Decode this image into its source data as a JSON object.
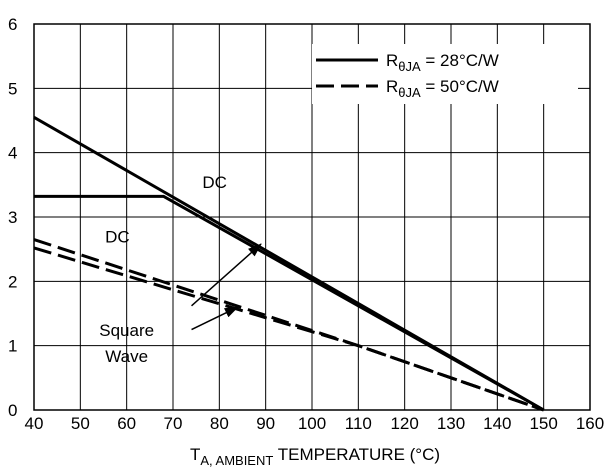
{
  "chart_data": {
    "type": "line",
    "xlabel_parts": {
      "main": "T",
      "sub": "A, AMBIENT",
      "rest": " TEMPERATURE (°C)"
    },
    "ylabel": "",
    "xlim": [
      40,
      160
    ],
    "ylim": [
      0,
      6
    ],
    "xticks": [
      40,
      50,
      60,
      70,
      80,
      90,
      100,
      110,
      120,
      130,
      140,
      150,
      160
    ],
    "yticks": [
      0,
      1,
      2,
      3,
      4,
      5,
      6
    ],
    "grid": true,
    "legend": {
      "placement": "top-right",
      "entries": [
        {
          "prefix": "R",
          "sub": "θJA",
          "suffix": " = 28°C/W",
          "style": "solid"
        },
        {
          "prefix": "R",
          "sub": "θJA",
          "suffix": " = 50°C/W",
          "style": "dashed"
        }
      ]
    },
    "series": [
      {
        "style": "solid",
        "x": [
          40,
          150
        ],
        "y": [
          4.55,
          0
        ]
      },
      {
        "style": "solid",
        "x": [
          40,
          68,
          150
        ],
        "y": [
          3.32,
          3.32,
          0
        ]
      },
      {
        "style": "dashed",
        "x": [
          40,
          110,
          150
        ],
        "y": [
          2.65,
          1.0,
          0
        ]
      },
      {
        "style": "dashed",
        "x": [
          40,
          110,
          150
        ],
        "y": [
          2.52,
          1.0,
          0
        ]
      }
    ],
    "annotations": [
      {
        "text": "DC",
        "x": 79,
        "y": 3.45
      },
      {
        "text": "DC",
        "x": 58,
        "y": 2.6
      },
      {
        "text": "Square",
        "x": 60,
        "y": 1.15
      },
      {
        "text": "Wave",
        "x": 60,
        "y": 0.75
      }
    ],
    "arrows": [
      {
        "from": [
          74,
          1.62
        ],
        "to": [
          89,
          2.58
        ]
      },
      {
        "from": [
          74,
          1.25
        ],
        "to": [
          84,
          1.6
        ]
      }
    ]
  }
}
